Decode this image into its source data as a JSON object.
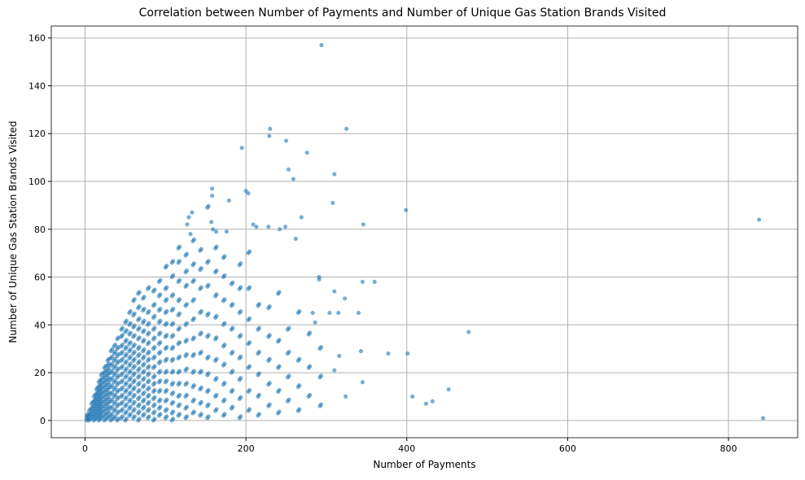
{
  "chart_data": {
    "type": "scatter",
    "title": "Correlation between Number of Payments and Number of Unique Gas Station Brands Visited",
    "xlabel": "Number of Payments",
    "ylabel": "Number of Unique Gas Station Brands Visited",
    "xlim": [
      -42,
      886
    ],
    "ylim": [
      -7.2,
      165
    ],
    "xticks": [
      0,
      200,
      400,
      600,
      800
    ],
    "yticks": [
      0,
      20,
      40,
      60,
      80,
      100,
      120,
      140,
      160
    ],
    "grid": true,
    "color": "#1f77b4",
    "alpha": 0.6,
    "columns": [
      {
        "x": 2,
        "y": [
          0,
          1,
          2
        ]
      },
      {
        "x": 5,
        "y": [
          0,
          2,
          4
        ]
      },
      {
        "x": 8,
        "y": [
          1,
          3,
          5,
          7
        ]
      },
      {
        "x": 11,
        "y": [
          0,
          2,
          4,
          6,
          8,
          10
        ]
      },
      {
        "x": 14,
        "y": [
          1,
          3,
          5,
          7,
          9,
          11,
          13
        ]
      },
      {
        "x": 17,
        "y": [
          0,
          2,
          4,
          6,
          8,
          10,
          12,
          14,
          16
        ]
      },
      {
        "x": 20,
        "y": [
          1,
          3,
          5,
          7,
          9,
          11,
          13,
          15,
          17,
          19
        ]
      },
      {
        "x": 24,
        "y": [
          0,
          2,
          4,
          6,
          8,
          10,
          12,
          14,
          16,
          18,
          20,
          22
        ]
      },
      {
        "x": 28,
        "y": [
          1,
          3,
          5,
          7,
          9,
          11,
          13,
          15,
          17,
          19,
          21,
          23,
          25
        ]
      },
      {
        "x": 32,
        "y": [
          0,
          2,
          5,
          8,
          11,
          14,
          17,
          20,
          23,
          26,
          29
        ]
      },
      {
        "x": 36,
        "y": [
          1,
          4,
          7,
          10,
          13,
          16,
          19,
          22,
          25,
          28,
          31
        ]
      },
      {
        "x": 40,
        "y": [
          0,
          3,
          6,
          9,
          12,
          15,
          18,
          21,
          24,
          27,
          30,
          34
        ]
      },
      {
        "x": 45,
        "y": [
          1,
          4,
          7,
          10,
          13,
          16,
          19,
          22,
          25,
          28,
          31,
          35,
          38
        ]
      },
      {
        "x": 50,
        "y": [
          0,
          3,
          6,
          9,
          12,
          15,
          18,
          21,
          24,
          27,
          30,
          33,
          37,
          41
        ]
      },
      {
        "x": 55,
        "y": [
          2,
          5,
          8,
          11,
          14,
          17,
          20,
          23,
          26,
          29,
          32,
          36,
          40,
          45
        ]
      },
      {
        "x": 60,
        "y": [
          1,
          4,
          7,
          10,
          13,
          16,
          19,
          22,
          25,
          28,
          31,
          35,
          39,
          44,
          50
        ]
      },
      {
        "x": 66,
        "y": [
          0,
          3,
          6,
          9,
          12,
          15,
          18,
          21,
          24,
          27,
          30,
          34,
          38,
          42,
          47,
          53
        ]
      },
      {
        "x": 72,
        "y": [
          2,
          5,
          8,
          11,
          14,
          17,
          20,
          23,
          26,
          29,
          33,
          37,
          41,
          46,
          51
        ]
      },
      {
        "x": 78,
        "y": [
          1,
          4,
          7,
          10,
          13,
          16,
          19,
          22,
          25,
          28,
          32,
          36,
          40,
          45,
          55
        ]
      },
      {
        "x": 85,
        "y": [
          0,
          3,
          6,
          9,
          12,
          15,
          18,
          22,
          26,
          30,
          34,
          38,
          43,
          48,
          54
        ]
      },
      {
        "x": 92,
        "y": [
          2,
          5,
          8,
          12,
          16,
          20,
          24,
          28,
          32,
          36,
          41,
          46,
          52,
          58
        ]
      },
      {
        "x": 100,
        "y": [
          1,
          4,
          8,
          12,
          16,
          20,
          25,
          30,
          35,
          40,
          45,
          50,
          55,
          64
        ]
      },
      {
        "x": 108,
        "y": [
          0,
          3,
          7,
          11,
          15,
          20,
          25,
          30,
          35,
          40,
          46,
          52,
          60,
          66
        ]
      },
      {
        "x": 116,
        "y": [
          2,
          6,
          10,
          15,
          20,
          26,
          32,
          38,
          44,
          50,
          58,
          66,
          72
        ]
      },
      {
        "x": 125,
        "y": [
          1,
          5,
          10,
          15,
          21,
          27,
          33,
          40,
          48,
          56,
          62,
          69
        ]
      },
      {
        "x": 134,
        "y": [
          3,
          8,
          14,
          20,
          27,
          34,
          42,
          50,
          58,
          65,
          75
        ]
      },
      {
        "x": 143,
        "y": [
          2,
          7,
          13,
          20,
          28,
          36,
          45,
          55,
          63,
          71
        ]
      },
      {
        "x": 152,
        "y": [
          1,
          6,
          12,
          19,
          26,
          35,
          44,
          56,
          66,
          89
        ]
      },
      {
        "x": 162,
        "y": [
          4,
          10,
          17,
          25,
          34,
          43,
          52,
          62,
          72
        ]
      },
      {
        "x": 172,
        "y": [
          2,
          8,
          15,
          23,
          31,
          40,
          50,
          60,
          68
        ]
      },
      {
        "x": 182,
        "y": [
          5,
          12,
          20,
          28,
          38,
          48,
          57
        ]
      },
      {
        "x": 192,
        "y": [
          1,
          9,
          17,
          26,
          35,
          45,
          55,
          65
        ]
      },
      {
        "x": 203,
        "y": [
          4,
          12,
          22,
          32,
          42,
          55,
          70
        ]
      },
      {
        "x": 215,
        "y": [
          2,
          10,
          19,
          28,
          38,
          48
        ]
      },
      {
        "x": 228,
        "y": [
          6,
          15,
          25,
          35,
          47
        ]
      },
      {
        "x": 240,
        "y": [
          3,
          12,
          22,
          33,
          53
        ]
      },
      {
        "x": 252,
        "y": [
          8,
          18,
          28,
          38
        ]
      },
      {
        "x": 265,
        "y": [
          4,
          14,
          25,
          45
        ]
      },
      {
        "x": 278,
        "y": [
          10,
          22,
          36
        ]
      },
      {
        "x": 292,
        "y": [
          6,
          18,
          30
        ]
      }
    ],
    "points": [
      [
        294,
        157
      ],
      [
        195,
        114
      ],
      [
        230,
        122
      ],
      [
        229,
        119
      ],
      [
        250,
        117
      ],
      [
        276,
        112
      ],
      [
        325,
        122
      ],
      [
        253,
        105
      ],
      [
        259,
        101
      ],
      [
        310,
        103
      ],
      [
        308,
        91
      ],
      [
        399,
        88
      ],
      [
        200,
        96
      ],
      [
        203,
        95
      ],
      [
        158,
        97
      ],
      [
        158,
        94
      ],
      [
        179,
        92
      ],
      [
        209,
        82
      ],
      [
        213,
        81
      ],
      [
        228,
        81
      ],
      [
        249,
        81
      ],
      [
        242,
        80
      ],
      [
        262,
        76
      ],
      [
        269,
        85
      ],
      [
        346,
        82
      ],
      [
        129,
        85
      ],
      [
        133,
        87
      ],
      [
        127,
        82
      ],
      [
        157,
        83
      ],
      [
        131,
        78
      ],
      [
        159,
        80
      ],
      [
        163,
        79
      ],
      [
        176,
        79
      ],
      [
        345,
        58
      ],
      [
        360,
        58
      ],
      [
        291,
        59
      ],
      [
        291,
        60
      ],
      [
        340,
        45
      ],
      [
        315,
        45
      ],
      [
        323,
        51
      ],
      [
        304,
        45
      ],
      [
        286,
        41
      ],
      [
        283,
        45
      ],
      [
        477,
        37
      ],
      [
        343,
        29
      ],
      [
        377,
        28
      ],
      [
        401,
        28
      ],
      [
        345,
        16
      ],
      [
        324,
        10
      ],
      [
        407,
        10
      ],
      [
        424,
        7
      ],
      [
        432,
        8
      ],
      [
        452,
        13
      ],
      [
        310,
        21
      ],
      [
        316,
        27
      ],
      [
        310,
        54
      ],
      [
        838,
        84
      ],
      [
        843,
        1
      ]
    ]
  }
}
